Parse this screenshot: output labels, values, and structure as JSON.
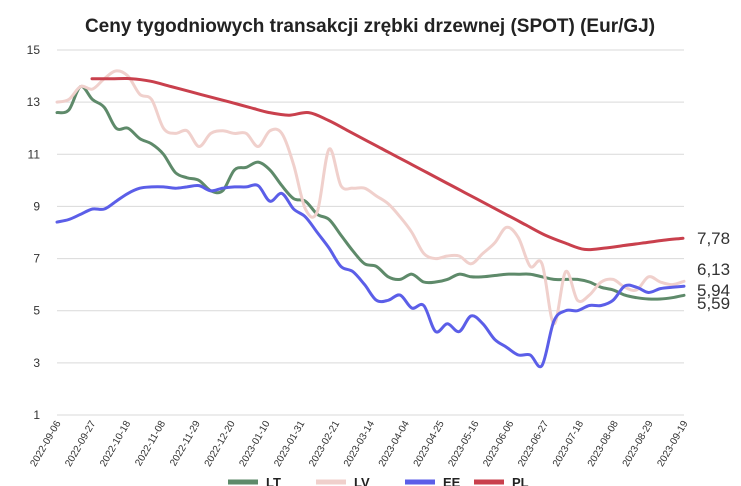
{
  "chart_data": {
    "type": "line",
    "title": "Ceny tygodniowych transakcji zrębki drzewnej (SPOT) (Eur/GJ)",
    "ylim": [
      1,
      15
    ],
    "yticks": [
      "1",
      "3",
      "5",
      "7",
      "9",
      "11",
      "13",
      "15"
    ],
    "grid": true,
    "legend_position": "bottom",
    "xticks": [
      "2022-09-06",
      "2022-09-27",
      "2022-10-18",
      "2022-11-08",
      "2022-11-29",
      "2022-12-20",
      "2023-01-10",
      "2023-01-31",
      "2023-02-21",
      "2023-03-14",
      "2023-04-04",
      "2023-04-25",
      "2023-05-16",
      "2023-06-06",
      "2023-06-27",
      "2023-07-18",
      "2023-08-08",
      "2023-08-29",
      "2023-09-19"
    ],
    "series": [
      {
        "name": "LT",
        "color": "#5e8a6a",
        "values": [
          12.6,
          12.7,
          13.6,
          13.1,
          12.8,
          12.0,
          12.0,
          11.6,
          11.4,
          11.0,
          10.3,
          10.1,
          10.0,
          9.6,
          9.6,
          10.4,
          10.5,
          10.7,
          10.4,
          9.8,
          9.3,
          9.2,
          8.7,
          8.5,
          7.9,
          7.3,
          6.8,
          6.7,
          6.3,
          6.2,
          6.4,
          6.1,
          6.1,
          6.2,
          6.4,
          6.3,
          6.3,
          6.35,
          6.4,
          6.4,
          6.4,
          6.3,
          6.2,
          6.2,
          6.2,
          6.1,
          5.9,
          5.8,
          5.6,
          5.5,
          5.45,
          5.45,
          5.5,
          5.59
        ]
      },
      {
        "name": "LV",
        "color": "#f0d0cc",
        "values": [
          13.0,
          13.1,
          13.6,
          13.5,
          13.9,
          14.2,
          14.0,
          13.3,
          13.1,
          12.0,
          11.8,
          11.9,
          11.3,
          11.8,
          11.9,
          11.8,
          11.8,
          11.3,
          11.9,
          11.8,
          10.6,
          8.9,
          8.8,
          11.2,
          9.8,
          9.7,
          9.7,
          9.4,
          9.1,
          8.6,
          8.0,
          7.2,
          7.0,
          7.1,
          7.1,
          6.8,
          7.2,
          7.6,
          8.2,
          7.8,
          6.7,
          6.8,
          4.5,
          6.5,
          5.4,
          5.6,
          6.1,
          6.2,
          5.9,
          5.8,
          6.3,
          6.1,
          6.0,
          6.13
        ]
      },
      {
        "name": "EE",
        "color": "#5b5ee8",
        "values": [
          8.4,
          8.5,
          8.7,
          8.9,
          8.9,
          9.2,
          9.5,
          9.7,
          9.75,
          9.75,
          9.7,
          9.75,
          9.8,
          9.6,
          9.7,
          9.75,
          9.75,
          9.8,
          9.2,
          9.5,
          8.9,
          8.6,
          8.0,
          7.4,
          6.7,
          6.5,
          6.0,
          5.4,
          5.4,
          5.6,
          5.1,
          5.2,
          4.2,
          4.5,
          4.2,
          4.8,
          4.5,
          3.9,
          3.6,
          3.3,
          3.3,
          2.9,
          4.6,
          5.0,
          5.0,
          5.2,
          5.2,
          5.4,
          5.95,
          5.9,
          5.7,
          5.85,
          5.9,
          5.94
        ]
      },
      {
        "name": "PL",
        "color": "#c9404d",
        "values": [
          13.9,
          13.9,
          13.9,
          13.8,
          13.6,
          13.4,
          13.2,
          13.0,
          12.8,
          12.6,
          12.5,
          12.6,
          12.3,
          11.9,
          11.5,
          11.1,
          10.7,
          10.3,
          9.9,
          9.5,
          9.1,
          8.7,
          8.3,
          7.9,
          7.6,
          7.35,
          7.4,
          7.5,
          7.6,
          7.7,
          7.78
        ]
      }
    ],
    "end_labels": [
      "7,78",
      "6,13",
      "5,94",
      "5,59"
    ]
  }
}
